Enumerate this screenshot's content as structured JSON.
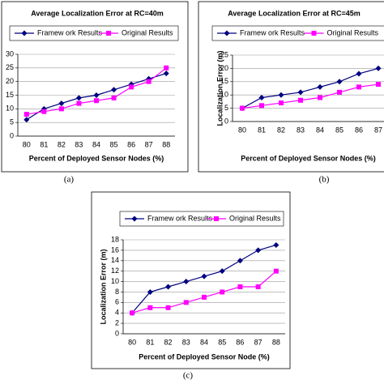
{
  "chart_data": [
    {
      "type": "line",
      "title": "Average Localization Error at RC=40m",
      "xlabel": "Percent of Deployed Sensor Nodes (%)",
      "caption": "(a)",
      "categories": [
        "80",
        "81",
        "82",
        "83",
        "84",
        "85",
        "86",
        "87",
        "88"
      ],
      "series": [
        {
          "name": "Framew ork Results",
          "color": "#000080",
          "marker": "diamond",
          "values": [
            6,
            10,
            12,
            14,
            15,
            17,
            19,
            21,
            23
          ]
        },
        {
          "name": "Original Results",
          "color": "#ff00ff",
          "marker": "square",
          "values": [
            8,
            9,
            10,
            12,
            13,
            14,
            18,
            20,
            25
          ]
        }
      ],
      "ylim": [
        0,
        30
      ],
      "yticks": [
        0,
        5,
        10,
        15,
        20,
        25,
        30
      ],
      "grid": true
    },
    {
      "type": "line",
      "title": "Average Localization Error at RC=45m",
      "ylabel": "Localization Error (m)",
      "xlabel": "Percent of Deployed Sensor Nodes (%)",
      "caption": "(b)",
      "categories": [
        "80",
        "81",
        "82",
        "83",
        "84",
        "85",
        "86",
        "87"
      ],
      "series": [
        {
          "name": "Framew ork Results",
          "color": "#000080",
          "marker": "diamond",
          "values": [
            5,
            9,
            10,
            11,
            13,
            15,
            18,
            20
          ]
        },
        {
          "name": "Original Results",
          "color": "#ff00ff",
          "marker": "square",
          "values": [
            5,
            6,
            7,
            8,
            9,
            11,
            13,
            14
          ]
        }
      ],
      "ylim": [
        0,
        25
      ],
      "yticks": [
        0,
        5,
        10,
        15,
        20,
        25
      ],
      "grid": true
    },
    {
      "type": "line",
      "title": "Average Localization Error at RC=50",
      "ylabel": "Localization Error (m)",
      "xlabel": "Percent of Deployed Sensor Node (%)",
      "caption": "(c)",
      "categories": [
        "80",
        "81",
        "82",
        "83",
        "84",
        "85",
        "86",
        "87",
        "88"
      ],
      "series": [
        {
          "name": "Framew ork Results",
          "color": "#000080",
          "marker": "diamond",
          "values": [
            4,
            8,
            9,
            10,
            11,
            12,
            14,
            16,
            17
          ]
        },
        {
          "name": "Original Results",
          "color": "#ff00ff",
          "marker": "square",
          "values": [
            4,
            5,
            5,
            6,
            7,
            8,
            9,
            9,
            12
          ]
        }
      ],
      "ylim": [
        0,
        18
      ],
      "yticks": [
        0,
        2,
        4,
        6,
        8,
        10,
        12,
        14,
        16,
        18
      ],
      "grid": true
    }
  ]
}
